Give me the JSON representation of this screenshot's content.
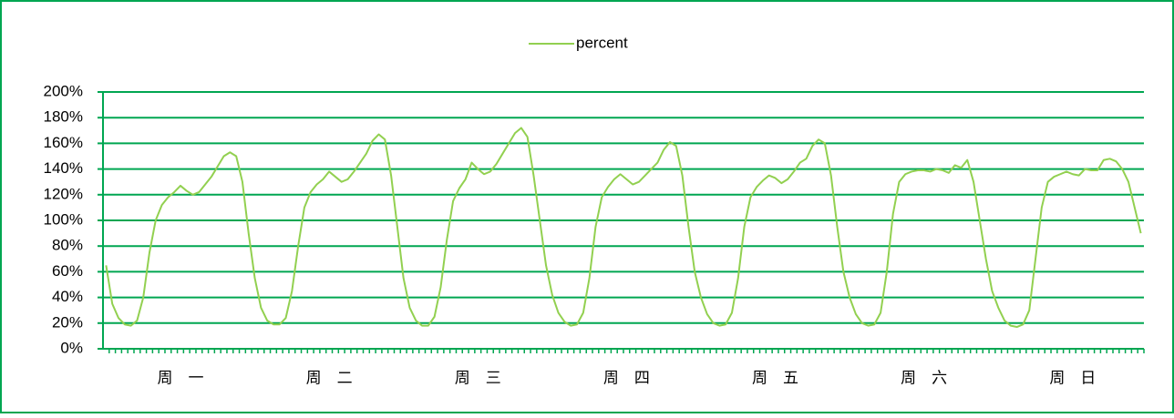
{
  "chart_data": {
    "type": "line",
    "categories": [
      null,
      null,
      null,
      null,
      null,
      null,
      null,
      null,
      null,
      null,
      null,
      null,
      "周　一",
      null,
      null,
      null,
      null,
      null,
      null,
      null,
      null,
      null,
      null,
      null,
      null,
      null,
      null,
      null,
      null,
      null,
      null,
      null,
      null,
      null,
      null,
      null,
      "周　二",
      null,
      null,
      null,
      null,
      null,
      null,
      null,
      null,
      null,
      null,
      null,
      null,
      null,
      null,
      null,
      null,
      null,
      null,
      null,
      null,
      null,
      null,
      null,
      "周　三",
      null,
      null,
      null,
      null,
      null,
      null,
      null,
      null,
      null,
      null,
      null,
      null,
      null,
      null,
      null,
      null,
      null,
      null,
      null,
      null,
      null,
      null,
      null,
      "周　四",
      null,
      null,
      null,
      null,
      null,
      null,
      null,
      null,
      null,
      null,
      null,
      null,
      null,
      null,
      null,
      null,
      null,
      null,
      null,
      null,
      null,
      null,
      null,
      "周　五",
      null,
      null,
      null,
      null,
      null,
      null,
      null,
      null,
      null,
      null,
      null,
      null,
      null,
      null,
      null,
      null,
      null,
      null,
      null,
      null,
      null,
      null,
      null,
      "周　六",
      null,
      null,
      null,
      null,
      null,
      null,
      null,
      null,
      null,
      null,
      null,
      null,
      null,
      null,
      null,
      null,
      null,
      null,
      null,
      null,
      null,
      null,
      null,
      "周　日",
      null,
      null,
      null,
      null,
      null,
      null,
      null,
      null,
      null,
      null,
      null
    ],
    "series": [
      {
        "name": "percent",
        "color": "#92d050",
        "values": [
          65,
          35,
          24,
          19,
          18,
          22,
          40,
          75,
          100,
          112,
          118,
          122,
          127,
          123,
          120,
          122,
          128,
          134,
          142,
          150,
          153,
          150,
          130,
          90,
          55,
          32,
          22,
          19,
          19,
          24,
          45,
          80,
          110,
          122,
          128,
          132,
          138,
          134,
          130,
          132,
          138,
          145,
          152,
          162,
          167,
          163,
          135,
          95,
          55,
          32,
          22,
          18,
          18,
          25,
          48,
          85,
          115,
          125,
          132,
          145,
          140,
          136,
          138,
          144,
          152,
          160,
          168,
          172,
          165,
          135,
          100,
          65,
          42,
          28,
          21,
          18,
          19,
          28,
          55,
          95,
          118,
          126,
          132,
          136,
          132,
          128,
          130,
          135,
          140,
          145,
          155,
          161,
          158,
          135,
          95,
          60,
          40,
          27,
          20,
          18,
          19,
          28,
          55,
          95,
          118,
          126,
          131,
          135,
          133,
          129,
          132,
          138,
          145,
          148,
          158,
          163,
          160,
          135,
          95,
          60,
          40,
          27,
          20,
          18,
          19,
          28,
          60,
          105,
          130,
          136,
          138,
          139,
          139,
          138,
          140,
          139,
          137,
          143,
          141,
          147,
          130,
          100,
          70,
          45,
          32,
          22,
          18,
          17,
          19,
          30,
          70,
          110,
          130,
          134,
          136,
          138,
          136,
          135,
          140,
          139,
          139,
          147,
          148,
          146,
          140,
          130,
          110,
          90
        ]
      }
    ],
    "ylim": [
      0,
      200
    ],
    "yticks": [
      {
        "value": 0,
        "label": "0%"
      },
      {
        "value": 20,
        "label": "20%"
      },
      {
        "value": 40,
        "label": "40%"
      },
      {
        "value": 60,
        "label": "60%"
      },
      {
        "value": 80,
        "label": "80%"
      },
      {
        "value": 100,
        "label": "100%"
      },
      {
        "value": 120,
        "label": "120%"
      },
      {
        "value": 140,
        "label": "140%"
      },
      {
        "value": 160,
        "label": "160%"
      },
      {
        "value": 180,
        "label": "180%"
      },
      {
        "value": 200,
        "label": "200%"
      }
    ],
    "grid": true,
    "legend": "top"
  }
}
